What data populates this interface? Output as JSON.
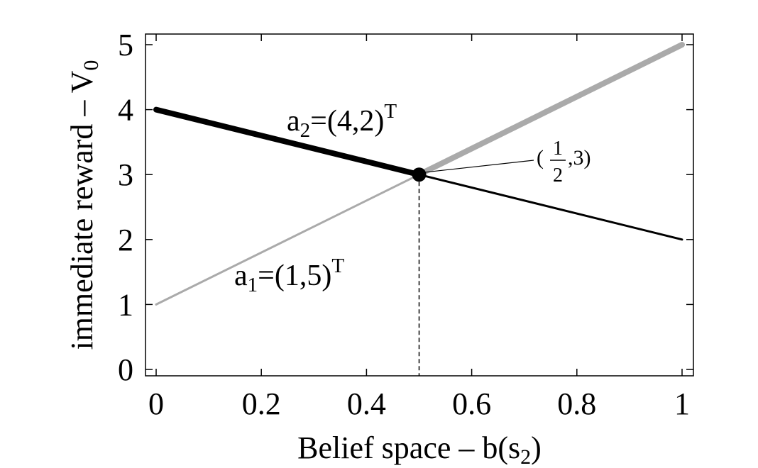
{
  "chart_data": {
    "type": "line",
    "xlabel": "Belief space – b(s",
    "xlabel_sub": "2",
    "xlabel_end": ")",
    "ylabel": "immediate reward – V",
    "ylabel_sub": "0",
    "xlim": [
      0,
      1
    ],
    "ylim": [
      0,
      5
    ],
    "xticks": [
      0,
      0.2,
      0.4,
      0.6,
      0.8,
      1
    ],
    "xtick_labels": [
      "0",
      "0.2",
      "0.4",
      "0.6",
      "0.8",
      "1"
    ],
    "yticks": [
      0,
      1,
      2,
      3,
      4,
      5
    ],
    "ytick_labels": [
      "0",
      "1",
      "2",
      "3",
      "4",
      "5"
    ],
    "grid": false,
    "series": [
      {
        "id": "a1",
        "label_main": "a",
        "label_sub": "1",
        "label_rest": "=(1,5)",
        "label_sup": "T",
        "x": [
          0,
          1
        ],
        "y": [
          1,
          5
        ],
        "color": "#aaaaaa",
        "dominant_from_x": 0.5
      },
      {
        "id": "a2",
        "label_main": "a",
        "label_sub": "2",
        "label_rest": "=(4,2)",
        "label_sup": "T",
        "x": [
          0,
          1
        ],
        "y": [
          4,
          2
        ],
        "color": "#000000",
        "dominant_until_x": 0.5
      }
    ],
    "intersection": {
      "x": 0.5,
      "y": 3,
      "label_open": "(",
      "label_num": "1",
      "label_den": "2",
      "label_close": ",3)"
    }
  }
}
